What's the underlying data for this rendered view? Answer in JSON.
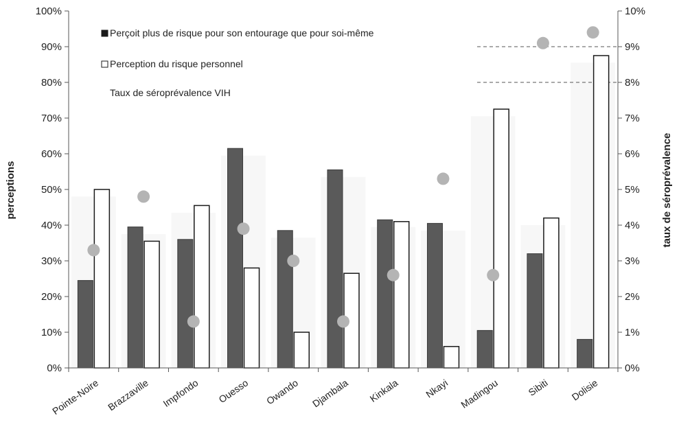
{
  "chart_data": {
    "type": "bar",
    "categories": [
      "Pointe-Noire",
      "Brazzaville",
      "Impfondo",
      "Ouesso",
      "Owando",
      "Djambala",
      "Kinkala",
      "Nkayi",
      "Madingou",
      "Sibiti",
      "Dolisie"
    ],
    "series": [
      {
        "name": "Perçoit plus de risque pour son entourage que pour soi-même",
        "kind": "bar",
        "axis": "left",
        "color": "#5a5a5a",
        "values": [
          24.5,
          39.5,
          36,
          61.5,
          38.5,
          55.5,
          41.5,
          40.5,
          10.5,
          32,
          8
        ]
      },
      {
        "name": "Perception du risque personnel",
        "kind": "bar",
        "axis": "left",
        "color": "#ffffff",
        "values": [
          50,
          35.5,
          45.5,
          28,
          10,
          26.5,
          41,
          6,
          72.5,
          42,
          87.5
        ]
      },
      {
        "name": "Taux de séroprévalence VIH",
        "kind": "scatter",
        "axis": "right",
        "color": "#b4b4b4",
        "values": [
          3.3,
          4.8,
          1.3,
          3.9,
          3.0,
          1.3,
          2.6,
          5.3,
          2.6,
          9.1,
          9.4
        ]
      }
    ],
    "ylabel": "perceptions",
    "y2label": "taux de séroprévalence",
    "ylim": [
      0,
      100
    ],
    "y2lim": [
      0,
      10
    ],
    "yticks": [
      "0%",
      "10%",
      "20%",
      "30%",
      "40%",
      "50%",
      "60%",
      "70%",
      "80%",
      "90%",
      "100%"
    ],
    "y2ticks": [
      "0%",
      "1%",
      "2%",
      "3%",
      "4%",
      "5%",
      "6%",
      "7%",
      "8%",
      "9%",
      "10%"
    ],
    "legend_position": "top-left"
  }
}
